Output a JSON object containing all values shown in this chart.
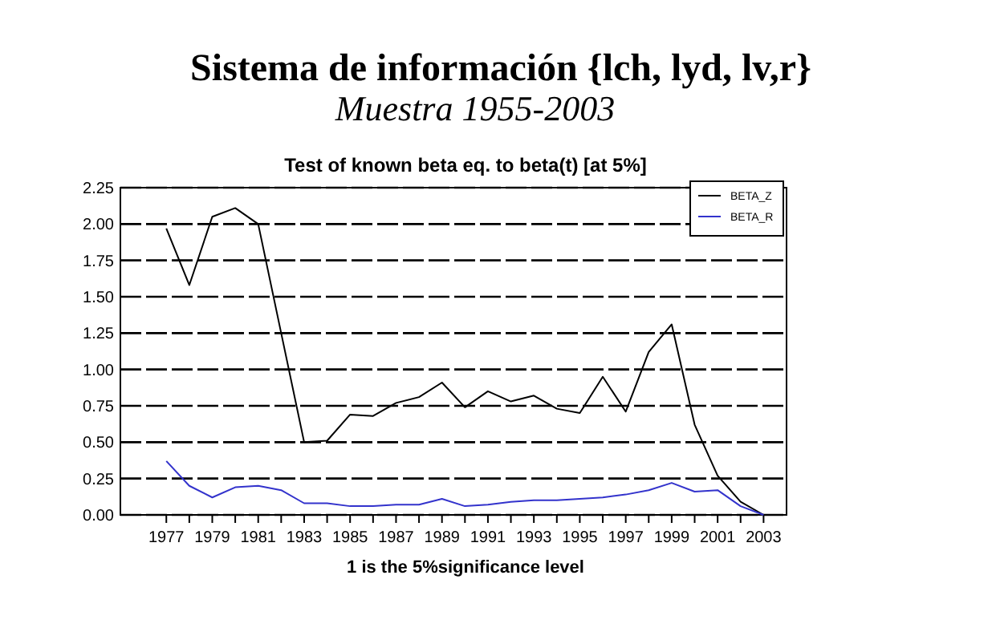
{
  "chart_data": {
    "type": "line",
    "title": "Sistema de información {lch, lyd, lv,r}",
    "subtitle": "Muestra 1955-2003",
    "annotations": [
      "Test of known beta eq. to beta(t) [at 5%]"
    ],
    "xlabel": "1 is the 5%significance level",
    "x": [
      1977,
      1978,
      1979,
      1980,
      1981,
      1982,
      1983,
      1984,
      1985,
      1986,
      1987,
      1988,
      1989,
      1990,
      1991,
      1992,
      1993,
      1994,
      1995,
      1996,
      1997,
      1998,
      1999,
      2000,
      2001,
      2002,
      2003
    ],
    "series": [
      {
        "name": "BETA_Z",
        "color": "#000000",
        "values": [
          1.97,
          1.58,
          2.05,
          2.11,
          2.0,
          1.25,
          0.5,
          0.51,
          0.69,
          0.68,
          0.77,
          0.81,
          0.91,
          0.74,
          0.85,
          0.78,
          0.82,
          0.73,
          0.7,
          0.95,
          0.71,
          1.12,
          1.31,
          0.62,
          0.27,
          0.09,
          0.0
        ]
      },
      {
        "name": "BETA_R",
        "color": "#3333cc",
        "values": [
          0.37,
          0.2,
          0.12,
          0.19,
          0.2,
          0.17,
          0.08,
          0.08,
          0.06,
          0.06,
          0.07,
          0.07,
          0.11,
          0.06,
          0.07,
          0.09,
          0.1,
          0.1,
          0.11,
          0.12,
          0.14,
          0.17,
          0.22,
          0.16,
          0.17,
          0.06,
          0.0
        ]
      }
    ],
    "xlim": [
      1975,
      2004
    ],
    "xticks": [
      1977,
      {
        "value": 1978,
        "label": null
      },
      1979,
      {
        "value": 1980,
        "label": null
      },
      1981,
      {
        "value": 1982,
        "label": null
      },
      1983,
      {
        "value": 1984,
        "label": null
      },
      1985,
      {
        "value": 1986,
        "label": null
      },
      1987,
      {
        "value": 1988,
        "label": null
      },
      1989,
      {
        "value": 1990,
        "label": null
      },
      1991,
      {
        "value": 1992,
        "label": null
      },
      1993,
      {
        "value": 1994,
        "label": null
      },
      1995,
      {
        "value": 1996,
        "label": null
      },
      1997,
      {
        "value": 1998,
        "label": null
      },
      1999,
      {
        "value": 2000,
        "label": null
      },
      2001,
      {
        "value": 2002,
        "label": null
      },
      2003
    ],
    "ylim": [
      0,
      2.25
    ],
    "yticks": [
      {
        "value": 0,
        "label": "0.00"
      },
      {
        "value": 0.25,
        "label": "0.25"
      },
      {
        "value": 0.5,
        "label": "0.50"
      },
      {
        "value": 0.75,
        "label": "0.75"
      },
      {
        "value": 1,
        "label": "1.00"
      },
      {
        "value": 1.25,
        "label": "1.25"
      },
      {
        "value": 1.5,
        "label": "1.50"
      },
      {
        "value": 1.75,
        "label": "1.75"
      },
      {
        "value": 2,
        "label": "2.00"
      },
      {
        "value": 2.25,
        "label": "2.25"
      }
    ],
    "grid": "y",
    "legend": "top right",
    "marker": "none",
    "line_style": "solid"
  }
}
